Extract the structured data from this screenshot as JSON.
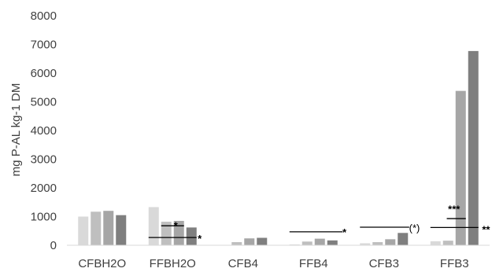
{
  "chart_data": {
    "type": "bar",
    "title": "",
    "xlabel": "",
    "ylabel": "mg P-AL kg-1 DM",
    "ylim": [
      0,
      8000
    ],
    "yticks": [
      0,
      1000,
      2000,
      3000,
      4000,
      5000,
      6000,
      7000,
      8000
    ],
    "grid": false,
    "legend": "none",
    "categories": [
      "CFBH2O",
      "FFBH2O",
      "CFB4",
      "FFB4",
      "CFB3",
      "FFB3"
    ],
    "series": [
      {
        "color": "#d9d9d9",
        "values": [
          1000,
          1330,
          0,
          30,
          70,
          140
        ]
      },
      {
        "color": "#bfbfbf",
        "values": [
          1170,
          820,
          110,
          130,
          110,
          160
        ]
      },
      {
        "color": "#a6a6a6",
        "values": [
          1200,
          850,
          240,
          230,
          210,
          5380
        ]
      },
      {
        "color": "#7f7f7f",
        "values": [
          1050,
          620,
          260,
          170,
          430,
          6770
        ]
      }
    ],
    "annotations": [
      {
        "text": "*",
        "category": "FFBH2O",
        "line": {
          "from_series": 1,
          "to_series": 2,
          "y": 680
        },
        "text_pos": {
          "series": 2,
          "y": 700
        },
        "bold": true
      },
      {
        "text": "*",
        "category": "FFBH2O",
        "line": {
          "from_series": 0,
          "to_series": 3,
          "y": 270
        },
        "text_pos": {
          "series": 3.9,
          "y": 240
        },
        "bold": true
      },
      {
        "text": "*",
        "category": "FFB4",
        "line": {
          "from_series": 0,
          "to_series": 3.4,
          "y": 470
        },
        "text_pos": {
          "series": 4.2,
          "y": 460
        },
        "bold": true
      },
      {
        "text": "(*)",
        "category": "CFB3",
        "line": {
          "from_series": 0,
          "to_series": 3.1,
          "y": 630
        },
        "text_pos": {
          "series": 3.9,
          "y": 610
        },
        "bold": false
      },
      {
        "text": "***",
        "category": "FFB3",
        "line": {
          "from_series": 1.3,
          "to_series": 2,
          "y": 930
        },
        "text_pos": {
          "series": 1.4,
          "y": 1280
        },
        "bold": true
      },
      {
        "text": "**",
        "category": "FFB3",
        "line": {
          "from_series": 0,
          "to_series": 3,
          "y": 620
        },
        "text_pos": {
          "series": 4.1,
          "y": 560
        },
        "bold": true
      }
    ]
  }
}
